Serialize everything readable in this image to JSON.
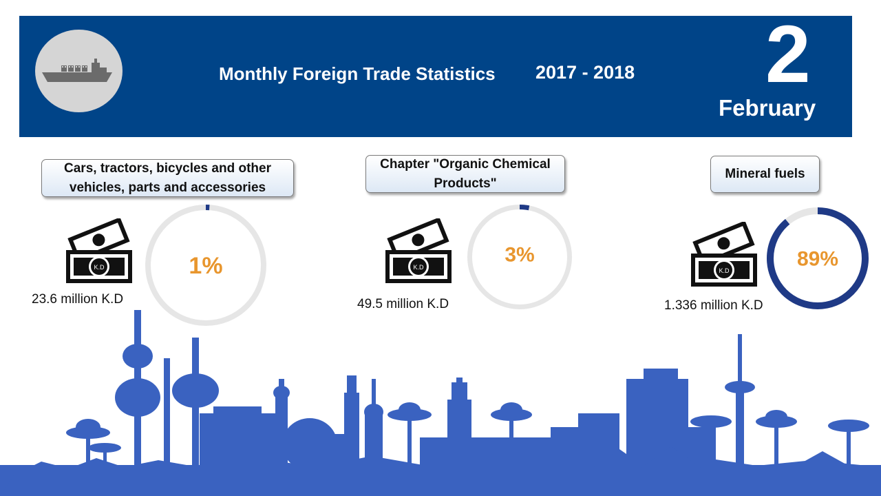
{
  "header": {
    "title": "Monthly Foreign Trade Statistics",
    "years": "2017 - 2018",
    "day": "2",
    "month": "February",
    "background": "#004488"
  },
  "icons": {
    "logo": "cargo-ship-icon",
    "money": "banknote-icon",
    "background": "kuwait-skyline"
  },
  "colors": {
    "accent_text": "#e8962e",
    "ring_fill": "#1f3a86",
    "ring_track": "#e6e6e6"
  },
  "items": [
    {
      "category": "Cars, tractors, bicycles and other vehicles, parts and accessories",
      "amount": "23.6 million K.D",
      "percent_label": "1%",
      "note_label": "K.D"
    },
    {
      "category": "Chapter \"Organic Chemical Products\"",
      "amount": "49.5 million K.D",
      "percent_label": "3%",
      "note_label": "K.D"
    },
    {
      "category": "Mineral fuels",
      "amount": "1.336 million K.D",
      "percent_label": "89%",
      "note_label": "K.D"
    }
  ],
  "chart_data": {
    "type": "pie",
    "categories": [
      "Cars, tractors, bicycles and other vehicles, parts and accessories",
      "Chapter \"Organic Chemical Products\"",
      "Mineral fuels"
    ],
    "values": [
      1,
      3,
      89
    ],
    "amounts": [
      "23.6 million K.D",
      "49.5 million K.D",
      "1.336 million K.D"
    ]
  }
}
